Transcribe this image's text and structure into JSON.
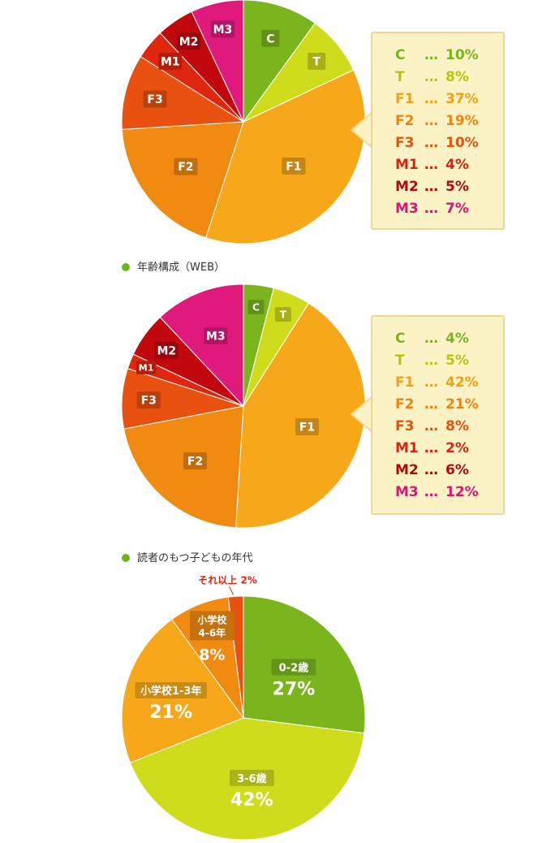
{
  "chart_data": [
    {
      "type": "pie",
      "title": "",
      "slices": [
        {
          "label": "C",
          "value": 10,
          "color": "#7ab51d"
        },
        {
          "label": "T",
          "value": 8,
          "color": "#cfdc1b"
        },
        {
          "label": "F1",
          "value": 37,
          "color": "#f7a81a"
        },
        {
          "label": "F2",
          "value": 19,
          "color": "#f08a10"
        },
        {
          "label": "F3",
          "value": 10,
          "color": "#e8510f"
        },
        {
          "label": "M1",
          "value": 4,
          "color": "#e0260f"
        },
        {
          "label": "M2",
          "value": 5,
          "color": "#c1080e"
        },
        {
          "label": "M3",
          "value": 7,
          "color": "#e0197d"
        }
      ],
      "legend": [
        {
          "code": "C",
          "sep": "…",
          "pct": "10%",
          "color": "#7ab51d"
        },
        {
          "code": "T",
          "sep": "…",
          "pct": "8%",
          "color": "#b8c60e"
        },
        {
          "code": "F1",
          "sep": "…",
          "pct": "37%",
          "color": "#f2a112"
        },
        {
          "code": "F2",
          "sep": "…",
          "pct": "19%",
          "color": "#ee8410"
        },
        {
          "code": "F3",
          "sep": "…",
          "pct": "10%",
          "color": "#e4530e"
        },
        {
          "code": "M1",
          "sep": "…",
          "pct": "4%",
          "color": "#d9230e"
        },
        {
          "code": "M2",
          "sep": "…",
          "pct": "5%",
          "color": "#b3080e"
        },
        {
          "code": "M3",
          "sep": "…",
          "pct": "7%",
          "color": "#dc1378"
        }
      ],
      "legend_placement": "right"
    },
    {
      "type": "pie",
      "title": "年齢構成（WEB）",
      "slices": [
        {
          "label": "C",
          "value": 4,
          "color": "#7ab51d"
        },
        {
          "label": "T",
          "value": 5,
          "color": "#cfdc1b"
        },
        {
          "label": "F1",
          "value": 42,
          "color": "#f7a81a"
        },
        {
          "label": "F2",
          "value": 21,
          "color": "#f08a10"
        },
        {
          "label": "F3",
          "value": 8,
          "color": "#e8510f"
        },
        {
          "label": "M1",
          "value": 2,
          "color": "#e0260f"
        },
        {
          "label": "M2",
          "value": 6,
          "color": "#c1080e"
        },
        {
          "label": "M3",
          "value": 12,
          "color": "#e0197d"
        }
      ],
      "legend": [
        {
          "code": "C",
          "sep": "…",
          "pct": "4%",
          "color": "#7ab51d"
        },
        {
          "code": "T",
          "sep": "…",
          "pct": "5%",
          "color": "#b8c60e"
        },
        {
          "code": "F1",
          "sep": "…",
          "pct": "42%",
          "color": "#f2a112"
        },
        {
          "code": "F2",
          "sep": "…",
          "pct": "21%",
          "color": "#ee8410"
        },
        {
          "code": "F3",
          "sep": "…",
          "pct": "8%",
          "color": "#e4530e"
        },
        {
          "code": "M1",
          "sep": "…",
          "pct": "2%",
          "color": "#d9230e"
        },
        {
          "code": "M2",
          "sep": "…",
          "pct": "6%",
          "color": "#b3080e"
        },
        {
          "code": "M3",
          "sep": "…",
          "pct": "12%",
          "color": "#dc1378"
        }
      ],
      "legend_placement": "right"
    },
    {
      "type": "pie",
      "title": "読者のもつ子どもの年代",
      "slices": [
        {
          "label": "0-2歳",
          "pct_label": "27%",
          "value": 27,
          "color": "#7ab51d"
        },
        {
          "label": "3-6歳",
          "pct_label": "42%",
          "value": 42,
          "color": "#cfdc1b"
        },
        {
          "label": "小学校1-3年",
          "pct_label": "21%",
          "value": 21,
          "color": "#f7a81a"
        },
        {
          "label": "小学校\n4-6年",
          "pct_label": "8%",
          "value": 8,
          "color": "#f08a10"
        },
        {
          "label": "それ以上",
          "pct_label": "2%",
          "value": 2,
          "color": "#e8510f"
        }
      ]
    }
  ]
}
